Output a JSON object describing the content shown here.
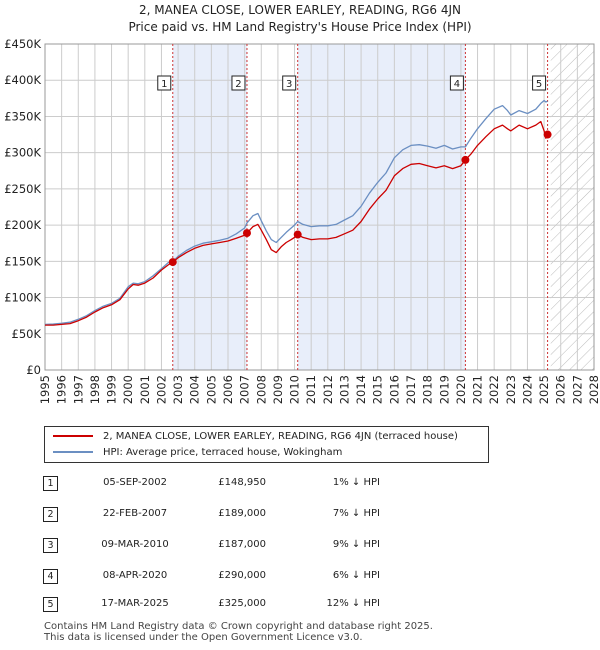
{
  "header": {
    "title_line1": "2, MANEA CLOSE, LOWER EARLEY, READING, RG6 4JN",
    "title_line2": "Price paid vs. HM Land Registry's House Price Index (HPI)"
  },
  "colors": {
    "price_line": "#cc0000",
    "hpi_line": "#6b8fc2",
    "shade": "#e8eefa",
    "grid": "#cccccc",
    "marker_dashed": "#cc3333",
    "hatch": "#bbbbbb"
  },
  "chart_data": {
    "type": "line",
    "title": "2, MANEA CLOSE, LOWER EARLEY, READING, RG6 4JN",
    "subtitle": "Price paid vs. HM Land Registry's House Price Index (HPI)",
    "xlabel": "",
    "ylabel": "",
    "xlim": [
      1995,
      2028
    ],
    "ylim": [
      0,
      450000
    ],
    "grid": true,
    "legend_position": "below",
    "x_ticks": [
      "1995",
      "1996",
      "1997",
      "1998",
      "1999",
      "2000",
      "2001",
      "2002",
      "2003",
      "2004",
      "2005",
      "2006",
      "2007",
      "2008",
      "2009",
      "2010",
      "2011",
      "2012",
      "2013",
      "2014",
      "2015",
      "2016",
      "2017",
      "2018",
      "2019",
      "2020",
      "2021",
      "2022",
      "2023",
      "2024",
      "2025",
      "2026",
      "2027",
      "2028"
    ],
    "y_ticks": [
      {
        "value": 0,
        "label": "£0"
      },
      {
        "value": 50000,
        "label": "£50K"
      },
      {
        "value": 100000,
        "label": "£100K"
      },
      {
        "value": 150000,
        "label": "£150K"
      },
      {
        "value": 200000,
        "label": "£200K"
      },
      {
        "value": 250000,
        "label": "£250K"
      },
      {
        "value": 300000,
        "label": "£300K"
      },
      {
        "value": 350000,
        "label": "£350K"
      },
      {
        "value": 400000,
        "label": "£400K"
      },
      {
        "value": 450000,
        "label": "£450K"
      }
    ],
    "shaded_ranges": [
      [
        2002.68,
        2007.14
      ],
      [
        2010.19,
        2020.27
      ]
    ],
    "future_hatch_from": 2025.4,
    "series": [
      {
        "name": "2, MANEA CLOSE, LOWER EARLEY, READING, RG6 4JN (terraced house)",
        "color": "#cc0000",
        "x": [
          1995.0,
          1995.5,
          1996.0,
          1996.5,
          1997.0,
          1997.5,
          1998.0,
          1998.5,
          1999.0,
          1999.5,
          2000.0,
          2000.3,
          2000.6,
          2001.0,
          2001.5,
          2002.0,
          2002.4,
          2002.68,
          2003.0,
          2003.5,
          2004.0,
          2004.5,
          2005.0,
          2005.5,
          2006.0,
          2006.5,
          2007.0,
          2007.14,
          2007.5,
          2007.8,
          2008.0,
          2008.3,
          2008.6,
          2008.9,
          2009.2,
          2009.5,
          2009.8,
          2010.0,
          2010.19,
          2010.5,
          2011.0,
          2011.5,
          2012.0,
          2012.5,
          2013.0,
          2013.5,
          2014.0,
          2014.5,
          2015.0,
          2015.5,
          2016.0,
          2016.5,
          2017.0,
          2017.5,
          2018.0,
          2018.5,
          2019.0,
          2019.5,
          2020.0,
          2020.27,
          2020.6,
          2021.0,
          2021.5,
          2022.0,
          2022.5,
          2022.8,
          2023.0,
          2023.5,
          2024.0,
          2024.5,
          2024.8,
          2025.0,
          2025.1,
          2025.21
        ],
        "y": [
          62000,
          62000,
          63000,
          64000,
          68000,
          73000,
          80000,
          86000,
          90000,
          97000,
          112000,
          118000,
          117000,
          120000,
          127000,
          138000,
          145000,
          148950,
          155000,
          162000,
          168000,
          172000,
          174000,
          176000,
          178000,
          182000,
          186000,
          189000,
          198000,
          201000,
          193000,
          180000,
          166000,
          162000,
          170000,
          176000,
          180000,
          183000,
          187000,
          183000,
          180000,
          181000,
          181000,
          183000,
          188000,
          193000,
          205000,
          222000,
          236000,
          248000,
          268000,
          278000,
          284000,
          285000,
          282000,
          279000,
          282000,
          278000,
          282000,
          290000,
          298000,
          310000,
          322000,
          333000,
          338000,
          333000,
          330000,
          338000,
          333000,
          338000,
          343000,
          330000,
          320000,
          325000
        ]
      },
      {
        "name": "HPI: Average price, terraced house, Wokingham",
        "color": "#6b8fc2",
        "x": [
          1995.0,
          1995.5,
          1996.0,
          1996.5,
          1997.0,
          1997.5,
          1998.0,
          1998.5,
          1999.0,
          1999.5,
          2000.0,
          2000.3,
          2000.6,
          2001.0,
          2001.5,
          2002.0,
          2002.4,
          2002.68,
          2003.0,
          2003.5,
          2004.0,
          2004.5,
          2005.0,
          2005.5,
          2006.0,
          2006.5,
          2007.0,
          2007.14,
          2007.5,
          2007.8,
          2008.0,
          2008.3,
          2008.6,
          2008.9,
          2009.2,
          2009.5,
          2009.8,
          2010.0,
          2010.19,
          2010.5,
          2011.0,
          2011.5,
          2012.0,
          2012.5,
          2013.0,
          2013.5,
          2014.0,
          2014.5,
          2015.0,
          2015.5,
          2016.0,
          2016.5,
          2017.0,
          2017.5,
          2018.0,
          2018.5,
          2019.0,
          2019.5,
          2020.0,
          2020.27,
          2020.6,
          2021.0,
          2021.5,
          2022.0,
          2022.5,
          2022.8,
          2023.0,
          2023.5,
          2024.0,
          2024.5,
          2024.8,
          2025.0,
          2025.1,
          2025.21
        ],
        "y": [
          63000,
          63500,
          64500,
          66000,
          70000,
          75000,
          82000,
          88000,
          92000,
          99000,
          115000,
          120000,
          119000,
          122000,
          130000,
          140000,
          148000,
          150000,
          157000,
          165000,
          171000,
          175000,
          177000,
          179000,
          182000,
          188000,
          196000,
          203000,
          213000,
          216000,
          206000,
          192000,
          180000,
          176000,
          183000,
          190000,
          196000,
          200000,
          205000,
          201000,
          198000,
          199000,
          199000,
          201000,
          207000,
          213000,
          226000,
          244000,
          259000,
          272000,
          293000,
          304000,
          310000,
          311000,
          309000,
          306000,
          310000,
          305000,
          308000,
          308000,
          320000,
          333000,
          347000,
          360000,
          365000,
          358000,
          352000,
          358000,
          354000,
          360000,
          368000,
          372000,
          370000,
          371000
        ]
      }
    ],
    "transactions": [
      {
        "marker": "1",
        "year": 2002.68,
        "price": 148950
      },
      {
        "marker": "2",
        "year": 2007.14,
        "price": 189000
      },
      {
        "marker": "3",
        "year": 2010.19,
        "price": 187000
      },
      {
        "marker": "4",
        "year": 2020.27,
        "price": 290000
      },
      {
        "marker": "5",
        "year": 2025.21,
        "price": 325000
      }
    ]
  },
  "legend": {
    "property_label": "2, MANEA CLOSE, LOWER EARLEY, READING, RG6 4JN (terraced house)",
    "hpi_label": "HPI: Average price, terraced house, Wokingham"
  },
  "transactions_table": [
    {
      "num": "1",
      "date": "05-SEP-2002",
      "price": "£148,950",
      "hpi": "1% ↓ HPI"
    },
    {
      "num": "2",
      "date": "22-FEB-2007",
      "price": "£189,000",
      "hpi": "7% ↓ HPI"
    },
    {
      "num": "3",
      "date": "09-MAR-2010",
      "price": "£187,000",
      "hpi": "9% ↓ HPI"
    },
    {
      "num": "4",
      "date": "08-APR-2020",
      "price": "£290,000",
      "hpi": "6% ↓ HPI"
    },
    {
      "num": "5",
      "date": "17-MAR-2025",
      "price": "£325,000",
      "hpi": "12% ↓ HPI"
    }
  ],
  "footer": {
    "line1": "Contains HM Land Registry data © Crown copyright and database right 2025.",
    "line2": "This data is licensed under the Open Government Licence v3.0."
  }
}
